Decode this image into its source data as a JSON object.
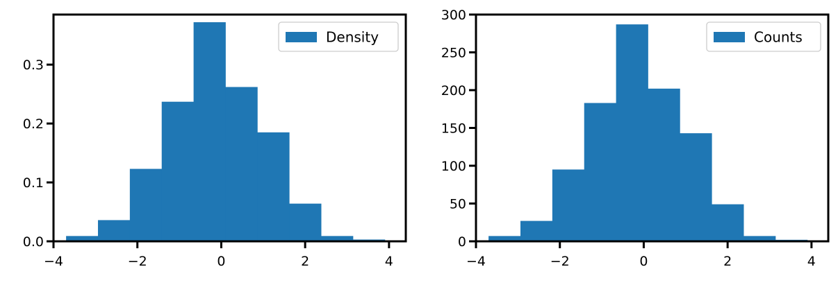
{
  "chart_data": [
    {
      "type": "bar",
      "panel": "left",
      "bin_edges": [
        -3.7,
        -2.94,
        -2.18,
        -1.42,
        -0.66,
        0.1,
        0.86,
        1.62,
        2.38,
        3.14,
        3.9
      ],
      "values": [
        0.009,
        0.036,
        0.123,
        0.237,
        0.372,
        0.262,
        0.185,
        0.064,
        0.009,
        0.003
      ],
      "legend": [
        "Density"
      ],
      "legend_position": "top-right",
      "xlim": [
        -4.0,
        4.4
      ],
      "ylim": [
        0,
        0.385
      ],
      "xticks": [
        -4,
        -2,
        0,
        2,
        4
      ],
      "xtick_labels": [
        "−4",
        "−2",
        "0",
        "2",
        "4"
      ],
      "yticks": [
        0.0,
        0.1,
        0.2,
        0.3
      ],
      "ytick_labels": [
        "0.0",
        "0.1",
        "0.2",
        "0.3"
      ],
      "color": "#1f77b4",
      "grid": false
    },
    {
      "type": "bar",
      "panel": "right",
      "bin_edges": [
        -3.7,
        -2.94,
        -2.18,
        -1.42,
        -0.66,
        0.1,
        0.86,
        1.62,
        2.38,
        3.14,
        3.9
      ],
      "values": [
        7,
        27,
        95,
        183,
        287,
        202,
        143,
        49,
        7,
        2
      ],
      "legend": [
        "Counts"
      ],
      "legend_position": "top-right",
      "xlim": [
        -4.0,
        4.4
      ],
      "ylim": [
        0,
        300
      ],
      "xticks": [
        -4,
        -2,
        0,
        2,
        4
      ],
      "xtick_labels": [
        "−4",
        "−2",
        "0",
        "2",
        "4"
      ],
      "yticks": [
        0,
        50,
        100,
        150,
        200,
        250,
        300
      ],
      "ytick_labels": [
        "0",
        "50",
        "100",
        "150",
        "200",
        "250",
        "300"
      ],
      "color": "#1f77b4",
      "grid": false
    }
  ]
}
